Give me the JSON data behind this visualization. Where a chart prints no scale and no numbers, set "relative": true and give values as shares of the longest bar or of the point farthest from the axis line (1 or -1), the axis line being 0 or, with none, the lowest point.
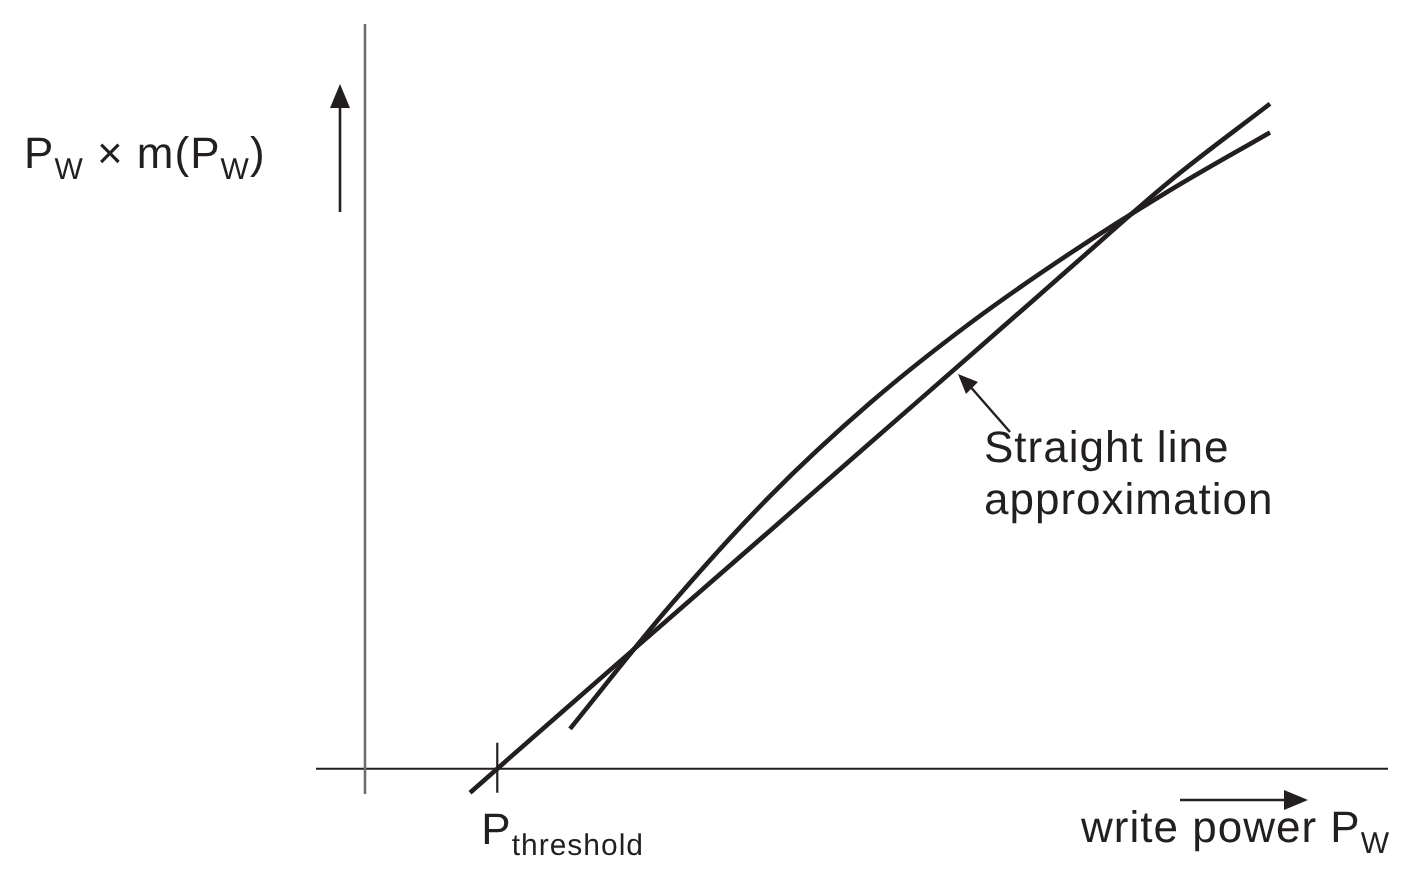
{
  "chart_data": {
    "type": "line",
    "relative": true,
    "xlabel": "write power P$_{W}$",
    "ylabel": "P$_{W}$ × m(P$_{W}$)",
    "categories": [
      null,
      null,
      null,
      null,
      null,
      null,
      null,
      null,
      null,
      null,
      null
    ],
    "series": [
      {
        "color": "#231f20",
        "values": [
          null,
          null,
          0.06,
          0.245,
          0.41,
          0.55,
          0.67,
          0.775,
          0.87,
          0.957,
          null
        ]
      },
      {
        "color": "#231f20",
        "values": [
          null,
          -0.036,
          0.096,
          0.227,
          0.358,
          0.49,
          0.621,
          0.753,
          0.884,
          1,
          null
        ]
      }
    ],
    "annotations": [
      "P$_{threshold}$",
      "Straight line approximation"
    ],
    "legend": false,
    "tick_labels": false,
    "marker": "none",
    "line_style": "solid"
  }
}
